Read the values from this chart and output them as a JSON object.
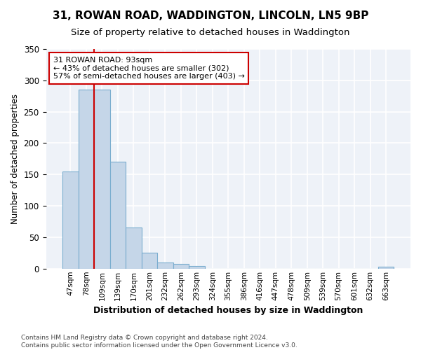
{
  "title1": "31, ROWAN ROAD, WADDINGTON, LINCOLN, LN5 9BP",
  "title2": "Size of property relative to detached houses in Waddington",
  "xlabel": "Distribution of detached houses by size in Waddington",
  "ylabel": "Number of detached properties",
  "categories": [
    "47sqm",
    "78sqm",
    "109sqm",
    "139sqm",
    "170sqm",
    "201sqm",
    "232sqm",
    "262sqm",
    "293sqm",
    "324sqm",
    "355sqm",
    "386sqm",
    "416sqm",
    "447sqm",
    "478sqm",
    "509sqm",
    "539sqm",
    "570sqm",
    "601sqm",
    "632sqm",
    "663sqm"
  ],
  "values": [
    155,
    285,
    285,
    170,
    65,
    25,
    10,
    7,
    4,
    0,
    0,
    0,
    0,
    0,
    0,
    0,
    0,
    0,
    0,
    0,
    3
  ],
  "bar_color": "#c5d6e8",
  "bar_edge_color": "#7aadcf",
  "bg_color": "#eef2f8",
  "grid_color": "#ffffff",
  "vline_x_index": 1,
  "vline_color": "#cc0000",
  "annotation_line1": "31 ROWAN ROAD: 93sqm",
  "annotation_line2": "← 43% of detached houses are smaller (302)",
  "annotation_line3": "57% of semi-detached houses are larger (403) →",
  "annotation_box_color": "#ffffff",
  "annotation_box_edge_color": "#cc0000",
  "footer1": "Contains HM Land Registry data © Crown copyright and database right 2024.",
  "footer2": "Contains public sector information licensed under the Open Government Licence v3.0.",
  "ylim": [
    0,
    350
  ],
  "yticks": [
    0,
    50,
    100,
    150,
    200,
    250,
    300,
    350
  ]
}
